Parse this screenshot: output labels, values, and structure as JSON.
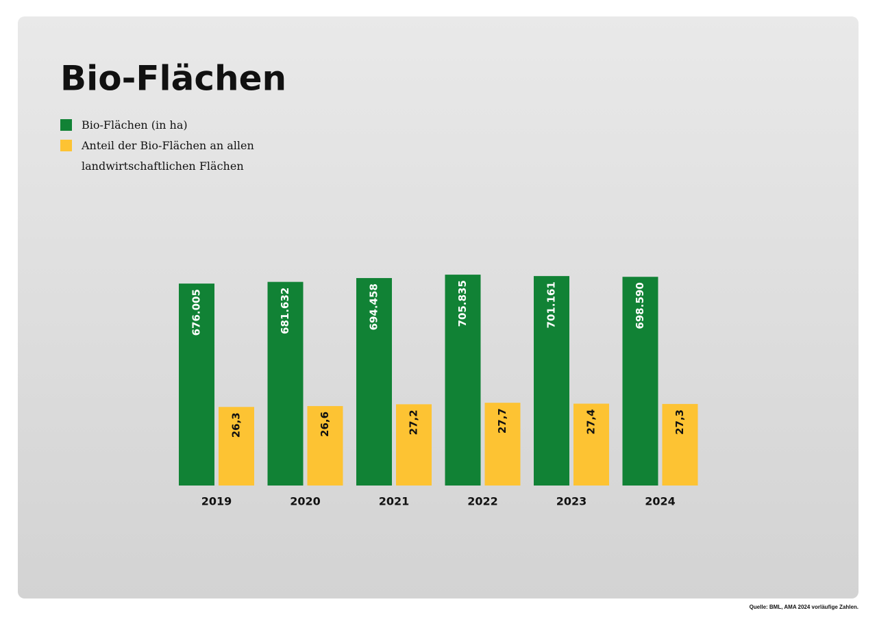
{
  "chart_data": {
    "type": "bar",
    "title": "Bio-Flächen",
    "categories": [
      "2019",
      "2020",
      "2021",
      "2022",
      "2023",
      "2024"
    ],
    "series": [
      {
        "name": "Bio-Flächen (in ha)",
        "color": "#118235",
        "values": [
          676005,
          681632,
          694458,
          705835,
          701161,
          698590
        ],
        "value_labels": [
          "676.005",
          "681.632",
          "694.458",
          "705.835",
          "701.161",
          "698.590"
        ]
      },
      {
        "name": "Anteil der Bio-Flächen an allen landwirtschaftlichen Flächen",
        "color": "#fdc333",
        "axis": "y2",
        "values": [
          26.3,
          26.6,
          27.2,
          27.7,
          27.4,
          27.3
        ],
        "value_labels": [
          "26,3",
          "26,6",
          "27,2",
          "27,7",
          "27,4",
          "27,3"
        ]
      }
    ],
    "ylim": [
      0,
      800000
    ],
    "y2lim": [
      0,
      80
    ],
    "source": "Quelle: BML, AMA 2024 vorläufige Zahlen."
  }
}
